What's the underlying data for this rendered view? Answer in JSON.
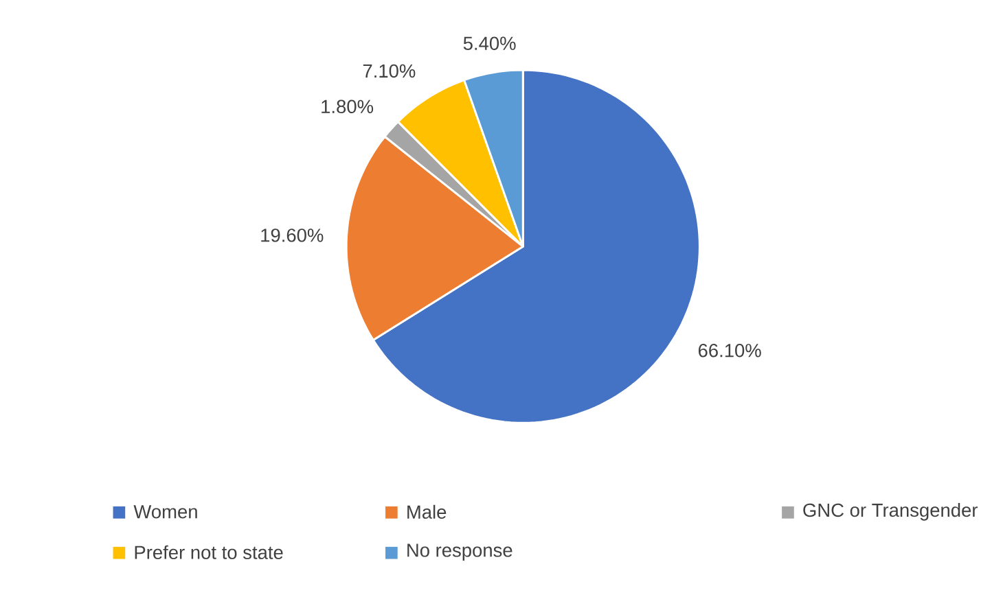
{
  "chart_data": {
    "type": "pie",
    "categories": [
      "Women",
      "Male",
      "GNC or Transgender",
      "Prefer not to state",
      "No response"
    ],
    "values": [
      66.1,
      19.6,
      1.8,
      7.1,
      5.4
    ],
    "value_labels": [
      "66.10%",
      "19.60%",
      "1.80%",
      "7.10%",
      "5.40%"
    ],
    "colors": [
      "#4472c4",
      "#ed7d31",
      "#a5a5a5",
      "#ffc000",
      "#5b9bd5"
    ],
    "legend": "bottom"
  }
}
